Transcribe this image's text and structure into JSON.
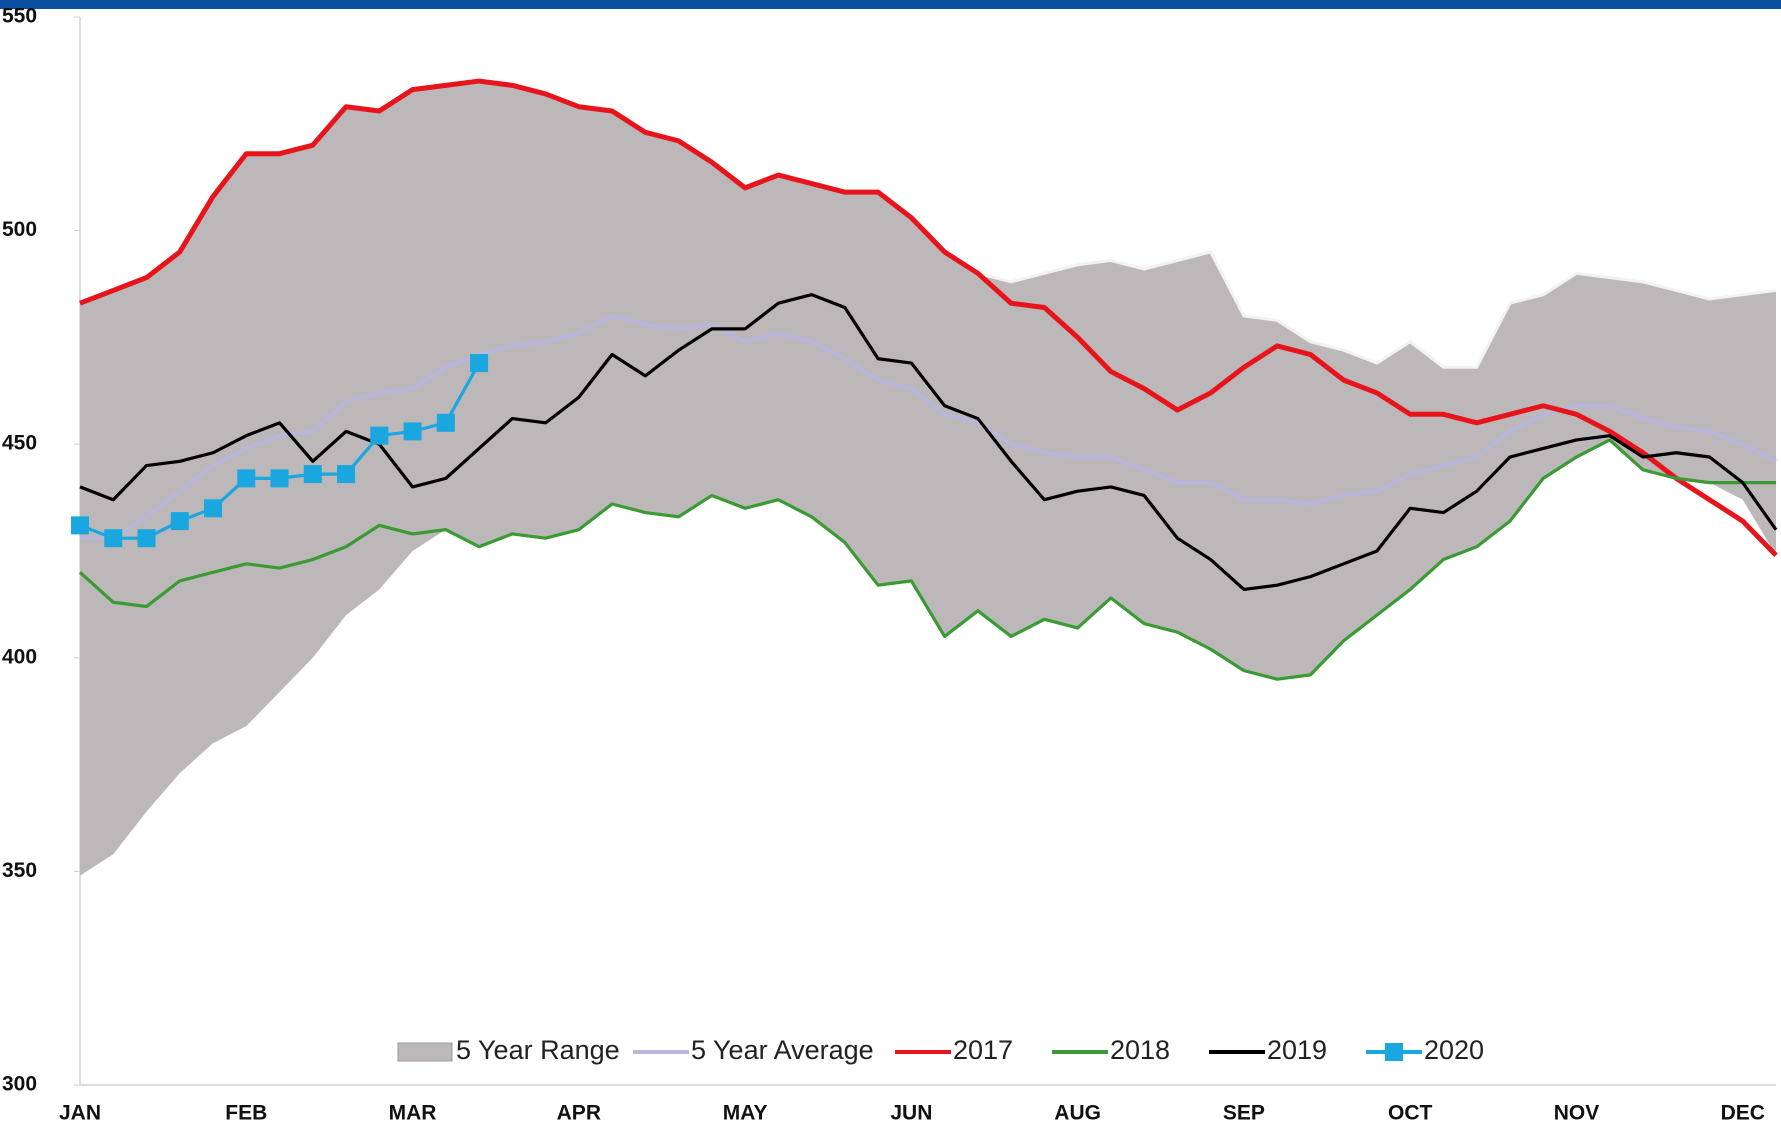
{
  "chart_data": {
    "type": "line",
    "categories": [
      "JAN",
      null,
      null,
      null,
      null,
      "FEB",
      null,
      null,
      null,
      null,
      "MAR",
      null,
      null,
      null,
      null,
      "APR",
      null,
      null,
      null,
      null,
      "MAY",
      null,
      null,
      null,
      null,
      "JUN",
      null,
      null,
      null,
      null,
      "AUG",
      null,
      null,
      null,
      null,
      "SEP",
      null,
      null,
      null,
      null,
      "OCT",
      null,
      null,
      null,
      null,
      "NOV",
      null,
      null,
      null,
      null,
      "DEC",
      null
    ],
    "ylim": [
      300,
      550
    ],
    "yticks": [
      300,
      350,
      400,
      450,
      500,
      550
    ],
    "legend": "bottom",
    "range": {
      "name": "5 Year Range",
      "color": "#bcb7b8",
      "high": [
        483,
        486,
        489,
        495,
        508,
        518,
        518,
        520,
        529,
        528,
        533,
        534,
        535,
        534,
        532,
        529,
        528,
        523,
        521,
        516,
        510,
        513,
        511,
        509,
        509,
        503,
        495,
        490,
        488,
        490,
        492,
        493,
        491,
        493,
        495,
        480,
        479,
        474,
        472,
        469,
        474,
        468,
        468,
        483,
        485,
        490,
        489,
        488,
        486,
        484,
        485,
        486
      ],
      "low": [
        349,
        354,
        364,
        373,
        380,
        384,
        392,
        400,
        410,
        416,
        425,
        430,
        426,
        429,
        428,
        430,
        436,
        434,
        433,
        438,
        435,
        437,
        433,
        427,
        417,
        418,
        405,
        411,
        405,
        409,
        407,
        414,
        408,
        406,
        402,
        397,
        395,
        396,
        404,
        410,
        416,
        423,
        426,
        432,
        442,
        447,
        451,
        444,
        442,
        441,
        437,
        424
      ]
    },
    "series": [
      {
        "name": "5 Year Average",
        "color": "#b8b6da",
        "values": [
          428,
          428,
          433,
          439,
          445,
          449,
          452,
          453,
          460,
          462,
          463,
          468,
          471,
          473,
          474,
          476,
          480,
          478,
          477,
          478,
          474,
          476,
          474,
          470,
          465,
          463,
          457,
          455,
          450,
          448,
          447,
          447,
          444,
          441,
          441,
          437,
          437,
          436,
          438,
          439,
          443,
          445,
          447,
          453,
          457,
          459,
          459,
          456,
          454,
          453,
          450,
          446
        ]
      },
      {
        "name": "2017",
        "color": "#e8141b",
        "values": [
          483,
          486,
          489,
          495,
          508,
          518,
          518,
          520,
          529,
          528,
          533,
          534,
          535,
          534,
          532,
          529,
          528,
          523,
          521,
          516,
          510,
          513,
          511,
          509,
          509,
          503,
          495,
          490,
          483,
          482,
          475,
          467,
          463,
          458,
          462,
          468,
          473,
          471,
          465,
          462,
          457,
          457,
          455,
          457,
          459,
          457,
          453,
          448,
          442,
          437,
          432,
          424
        ]
      },
      {
        "name": "2018",
        "color": "#3a9a34",
        "values": [
          420,
          413,
          412,
          418,
          420,
          422,
          421,
          423,
          426,
          431,
          429,
          430,
          426,
          429,
          428,
          430,
          436,
          434,
          433,
          438,
          435,
          437,
          433,
          427,
          417,
          418,
          405,
          411,
          405,
          409,
          407,
          414,
          408,
          406,
          402,
          397,
          395,
          396,
          404,
          410,
          416,
          423,
          426,
          432,
          442,
          447,
          451,
          444,
          442,
          441,
          441,
          441
        ]
      },
      {
        "name": "2019",
        "color": "#000000",
        "values": [
          440,
          437,
          445,
          446,
          448,
          452,
          455,
          446,
          453,
          450,
          440,
          442,
          449,
          456,
          455,
          461,
          471,
          466,
          472,
          477,
          477,
          483,
          485,
          482,
          470,
          469,
          459,
          456,
          446,
          437,
          439,
          440,
          438,
          428,
          423,
          416,
          417,
          419,
          422,
          425,
          435,
          434,
          439,
          447,
          449,
          451,
          452,
          447,
          448,
          447,
          441,
          430
        ]
      },
      {
        "name": "2020",
        "color": "#1aa7e0",
        "markers": true,
        "values": [
          431,
          428,
          428,
          432,
          435,
          442,
          442,
          443,
          443,
          452,
          453,
          455,
          469,
          null,
          null,
          null,
          null,
          null,
          null,
          null,
          null,
          null,
          null,
          null,
          null,
          null,
          null,
          null,
          null,
          null,
          null,
          null,
          null,
          null,
          null,
          null,
          null,
          null,
          null,
          null,
          null,
          null,
          null,
          null,
          null,
          null,
          null,
          null,
          null,
          null,
          null,
          null
        ]
      }
    ]
  }
}
